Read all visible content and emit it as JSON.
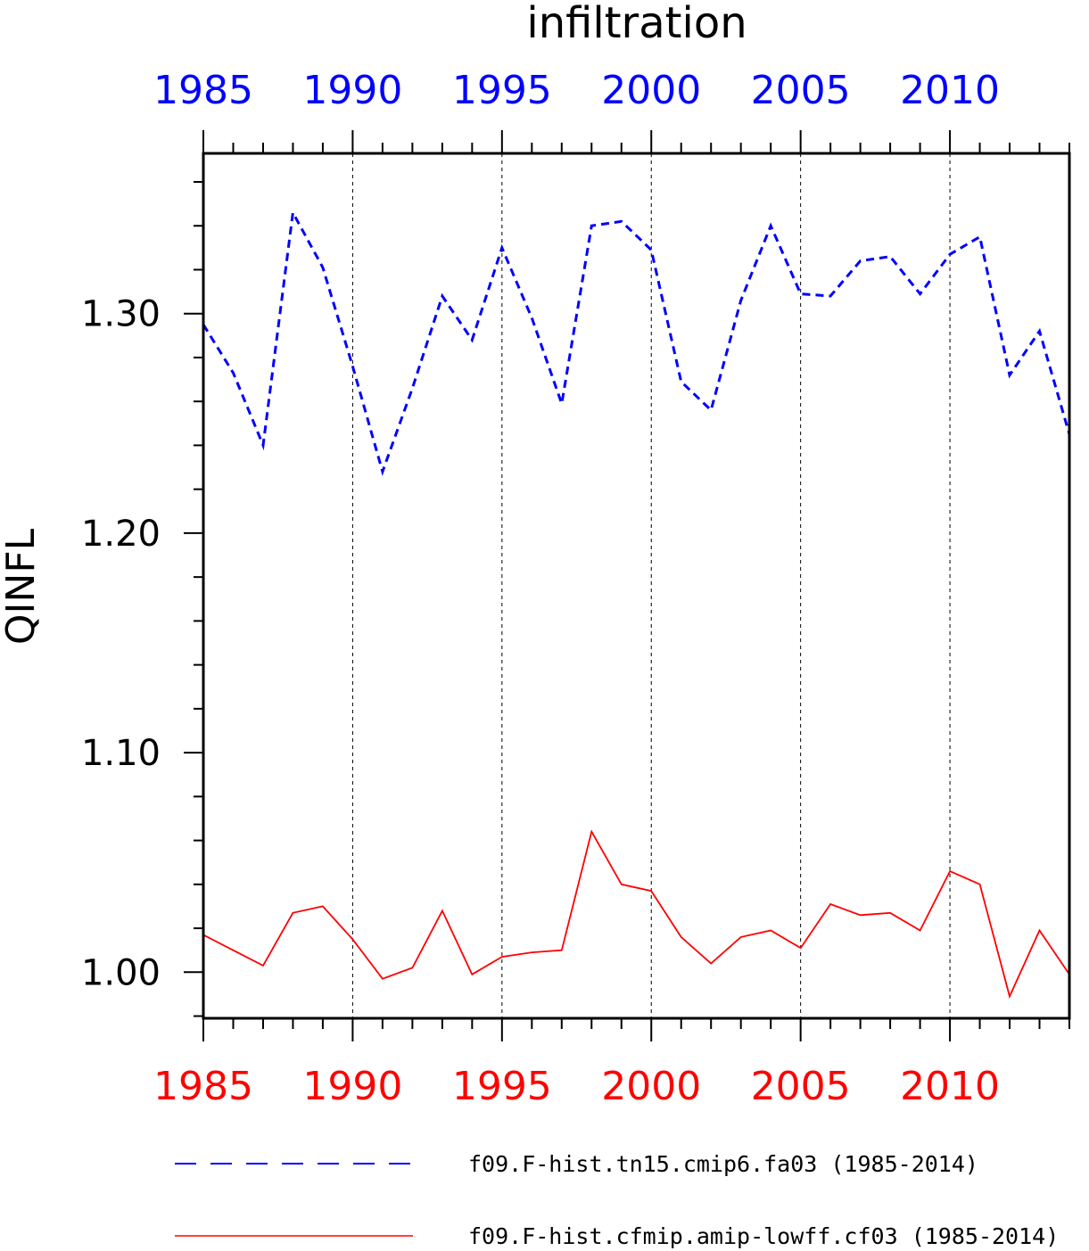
{
  "chart_data": {
    "type": "line",
    "title": "infiltration",
    "xlabel": "",
    "ylabel": "QINFL",
    "xlim": [
      1985,
      2014
    ],
    "ylim": [
      0.979,
      1.373
    ],
    "x_ticks_labeled": [
      1985,
      1990,
      1995,
      2000,
      2005,
      2010
    ],
    "x_tick_labels": [
      "1985",
      "1990",
      "1995",
      "2000",
      "2005",
      "2010"
    ],
    "y_ticks_labeled": [
      1.0,
      1.1,
      1.2,
      1.3
    ],
    "y_tick_labels": [
      "1.00",
      "1.10",
      "1.20",
      "1.30"
    ],
    "grid": "vertical dashed lines at labeled x ticks",
    "top_axis_color": "#0000ff",
    "bottom_axis_color": "#ff0000",
    "legend_position": "bottom",
    "x": [
      1985,
      1986,
      1987,
      1988,
      1989,
      1990,
      1991,
      1992,
      1993,
      1994,
      1995,
      1996,
      1997,
      1998,
      1999,
      2000,
      2001,
      2002,
      2003,
      2004,
      2005,
      2006,
      2007,
      2008,
      2009,
      2010,
      2011,
      2012,
      2013,
      2014
    ],
    "series": [
      {
        "name": "f09.F-hist.tn15.cmip6.fa03 (1985-2014)",
        "color": "#0000ff",
        "style": "dashed",
        "values": [
          1.295,
          1.273,
          1.24,
          1.346,
          1.321,
          1.276,
          1.228,
          1.266,
          1.308,
          1.288,
          1.33,
          1.298,
          1.259,
          1.34,
          1.342,
          1.329,
          1.269,
          1.256,
          1.306,
          1.34,
          1.309,
          1.308,
          1.324,
          1.326,
          1.309,
          1.327,
          1.335,
          1.272,
          1.292,
          1.245
        ]
      },
      {
        "name": "f09.F-hist.cfmip.amip-lowff.cf03 (1985-2014)",
        "color": "#ff0000",
        "style": "solid",
        "values": [
          1.017,
          1.01,
          1.003,
          1.027,
          1.03,
          1.015,
          0.997,
          1.002,
          1.028,
          0.999,
          1.007,
          1.009,
          1.01,
          1.064,
          1.04,
          1.037,
          1.016,
          1.004,
          1.016,
          1.019,
          1.011,
          1.031,
          1.026,
          1.027,
          1.019,
          1.046,
          1.04,
          0.989,
          1.019,
          0.999
        ]
      }
    ]
  }
}
